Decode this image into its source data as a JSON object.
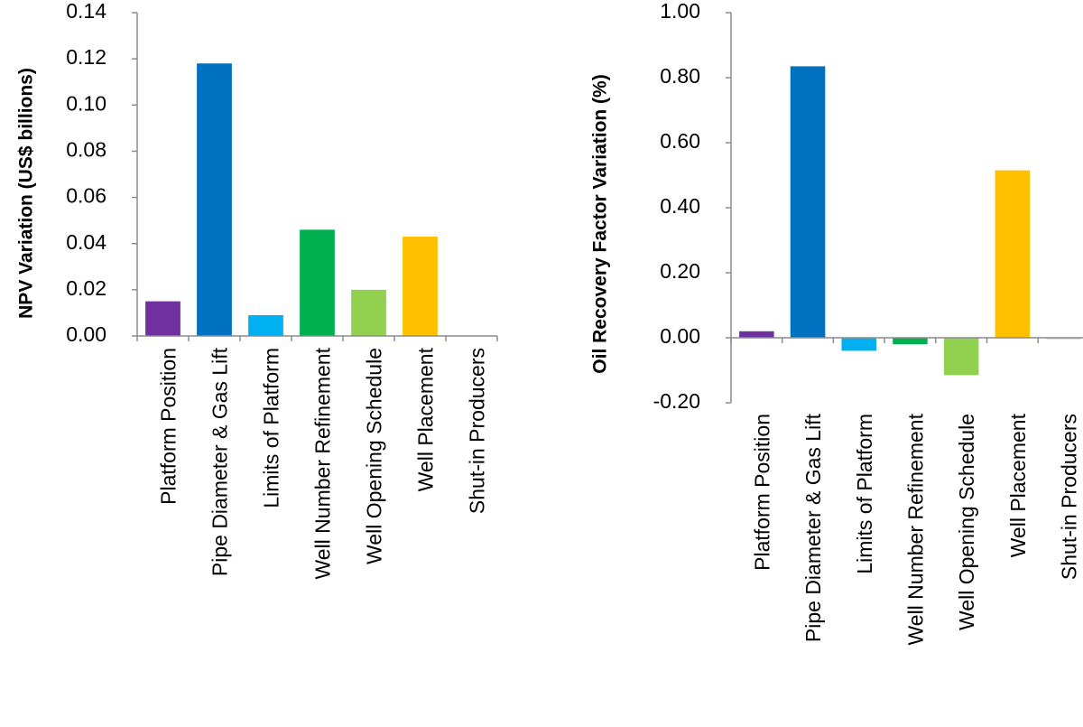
{
  "chart_data": [
    {
      "type": "bar",
      "title": "",
      "xlabel": "",
      "ylabel": "NPV Variation (US$ billions)",
      "categories": [
        "Platform Position",
        "Pipe Diameter & Gas Lift",
        "Limits of Platform",
        "Well Number Refinement",
        "Well Opening Schedule",
        "Well Placement",
        "Shut-in Producers"
      ],
      "values": [
        0.015,
        0.118,
        0.009,
        0.046,
        0.02,
        0.043,
        0.0
      ],
      "colors": [
        "#7030a0",
        "#0070c0",
        "#00b0f0",
        "#00b050",
        "#92d050",
        "#ffc000",
        "#d9d9d9"
      ],
      "ylim": [
        0,
        0.14
      ],
      "yticks": [
        "0.00",
        "0.02",
        "0.04",
        "0.06",
        "0.08",
        "0.10",
        "0.12",
        "0.14"
      ],
      "grid": false,
      "legend": "none"
    },
    {
      "type": "bar",
      "title": "",
      "xlabel": "",
      "ylabel": "Oil Recovery Factor Variation (%)",
      "categories": [
        "Platform Position",
        "Pipe Diameter & Gas Lift",
        "Limits of Platform",
        "Well Number Refinement",
        "Well Opening Schedule",
        "Well Placement",
        "Shut-in Producers"
      ],
      "values": [
        0.02,
        0.835,
        -0.04,
        -0.02,
        -0.115,
        0.515,
        -0.005
      ],
      "colors": [
        "#7030a0",
        "#0070c0",
        "#00b0f0",
        "#00b050",
        "#92d050",
        "#ffc000",
        "#d9d9d9"
      ],
      "ylim": [
        -0.2,
        1.0
      ],
      "yticks": [
        "-0.20",
        "0.00",
        "0.20",
        "0.40",
        "0.60",
        "0.80",
        "1.00"
      ],
      "grid": false,
      "legend": "none"
    }
  ]
}
